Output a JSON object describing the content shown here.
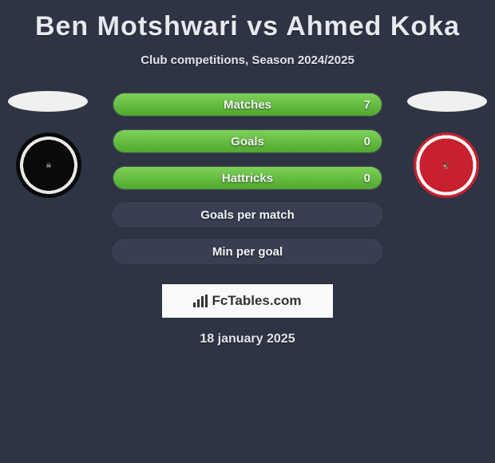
{
  "title": "Ben Motshwari vs Ahmed Koka",
  "subtitle": "Club competitions, Season 2024/2025",
  "rows": [
    {
      "label": "Matches",
      "value": "7",
      "filled": true
    },
    {
      "label": "Goals",
      "value": "0",
      "filled": true
    },
    {
      "label": "Hattricks",
      "value": "0",
      "filled": true
    },
    {
      "label": "Goals per match",
      "value": "",
      "filled": false
    },
    {
      "label": "Min per goal",
      "value": "",
      "filled": false
    }
  ],
  "footer_brand": "FcTables.com",
  "date": "18 january 2025",
  "colors": {
    "background": "#2f3444",
    "pill_bg": "#393f50",
    "fill_start": "#7fd158",
    "fill_end": "#4fa82e",
    "text": "#e6e9f0",
    "logo_bg": "#fafafa"
  }
}
